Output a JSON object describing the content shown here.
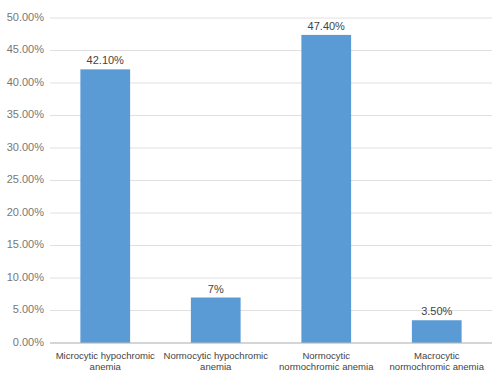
{
  "chart_data": {
    "type": "bar",
    "categories": [
      "Microcytic hypochromic\nanemia",
      "Normocytic hypochromic\nanemia",
      "Normocytic\nnormochromic anemia",
      "Macrocytic\nnormochromic anemia"
    ],
    "values": [
      42.1,
      7.0,
      47.4,
      3.5
    ],
    "value_labels": [
      "42.10%",
      "7%",
      "47.40%",
      "3.50%"
    ],
    "data_labels": true,
    "color": "#5B9BD5",
    "ylim": [
      0,
      50
    ],
    "yticks": [
      {
        "value": 0,
        "label": "0.00%"
      },
      {
        "value": 5,
        "label": "5.00%"
      },
      {
        "value": 10,
        "label": "10.00%"
      },
      {
        "value": 15,
        "label": "15.00%"
      },
      {
        "value": 20,
        "label": "20.00%"
      },
      {
        "value": 25,
        "label": "25.00%"
      },
      {
        "value": 30,
        "label": "30.00%"
      },
      {
        "value": 35,
        "label": "35.00%"
      },
      {
        "value": 40,
        "label": "40.00%"
      },
      {
        "value": 45,
        "label": "45.00%"
      },
      {
        "value": 50,
        "label": "50.00%"
      }
    ],
    "grid": true
  }
}
